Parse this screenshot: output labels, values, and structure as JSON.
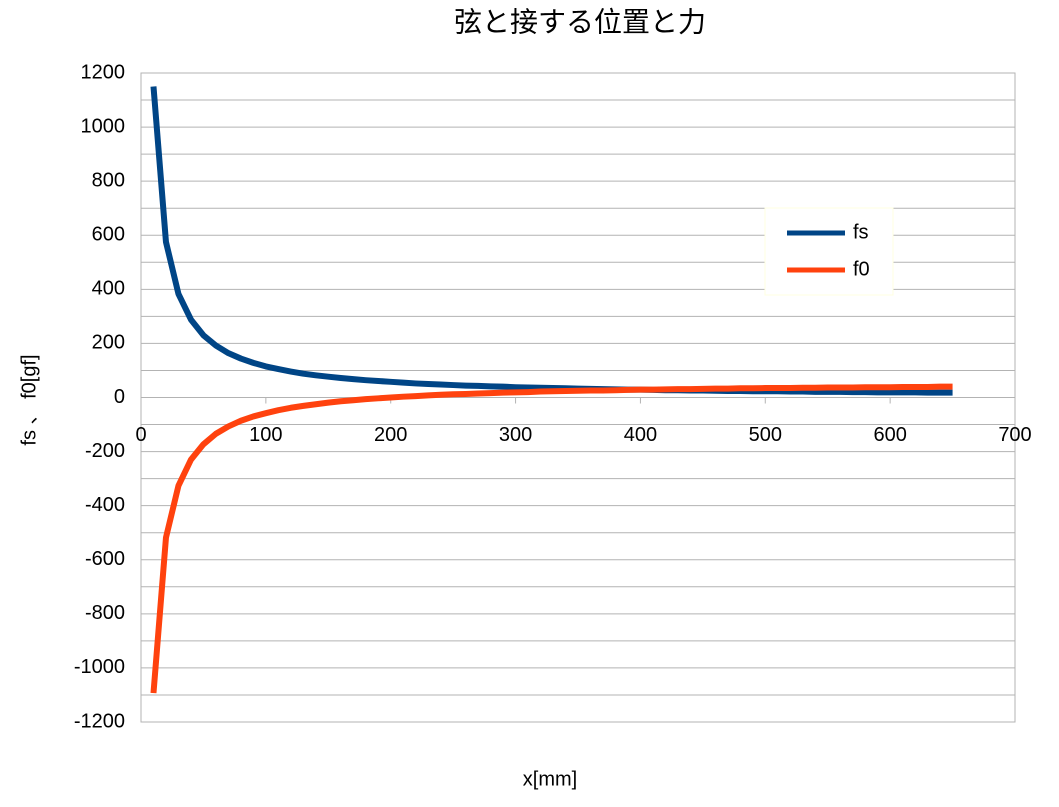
{
  "chart_data": {
    "type": "line",
    "title": "弦と接する位置と力",
    "x_label": "x[mm]",
    "y_label": "fs 、 f0[gf]",
    "x": [
      10,
      20,
      30,
      40,
      50,
      60,
      70,
      80,
      90,
      100,
      110,
      120,
      130,
      140,
      150,
      160,
      170,
      180,
      190,
      200,
      210,
      220,
      230,
      240,
      250,
      260,
      270,
      280,
      290,
      300,
      310,
      320,
      330,
      340,
      350,
      360,
      370,
      380,
      390,
      400,
      410,
      420,
      430,
      440,
      450,
      460,
      470,
      480,
      490,
      500,
      510,
      520,
      530,
      540,
      550,
      560,
      570,
      580,
      590,
      600,
      610,
      620,
      630,
      640,
      650
    ],
    "series": [
      {
        "name": "fs",
        "color": "#004586",
        "values": [
          1150,
          575,
          383,
          288,
          230,
          192,
          164,
          144,
          128,
          115,
          105,
          96,
          88,
          82,
          77,
          72,
          68,
          64,
          61,
          58,
          55,
          52,
          50,
          48,
          46,
          44,
          43,
          41,
          40,
          38,
          37,
          36,
          35,
          34,
          33,
          32,
          31,
          30,
          29,
          29,
          28,
          27,
          27,
          26,
          26,
          25,
          24,
          24,
          23,
          23,
          23,
          22,
          22,
          21,
          21,
          21,
          20,
          20,
          19,
          19,
          19,
          19,
          18,
          18,
          18
        ]
      },
      {
        "name": "f0",
        "color": "#ff420e",
        "values": [
          -1093,
          -518,
          -326,
          -230,
          -173,
          -134,
          -107,
          -86,
          -70,
          -58,
          -47,
          -38,
          -31,
          -25,
          -19,
          -14,
          -10,
          -6,
          -3,
          0,
          3,
          5,
          8,
          10,
          12,
          13,
          15,
          16,
          18,
          19,
          20,
          22,
          23,
          24,
          25,
          26,
          26,
          27,
          28,
          29,
          29,
          30,
          31,
          31,
          32,
          33,
          33,
          34,
          34,
          35,
          35,
          35,
          36,
          36,
          37,
          37,
          37,
          38,
          38,
          38,
          39,
          39,
          39,
          40,
          40
        ]
      }
    ],
    "xlim": [
      0,
      700
    ],
    "xticks": [
      0,
      100,
      200,
      300,
      400,
      500,
      600,
      700
    ],
    "ylim": [
      -1200,
      1200
    ],
    "yticks": [
      -1200,
      -1000,
      -800,
      -600,
      -400,
      -200,
      0,
      200,
      400,
      600,
      800,
      1000,
      1200
    ],
    "yminorticks": [
      -1100,
      -900,
      -700,
      -500,
      -300,
      -100,
      100,
      300,
      500,
      700,
      900,
      1100
    ],
    "grid": true,
    "legend": "right"
  }
}
